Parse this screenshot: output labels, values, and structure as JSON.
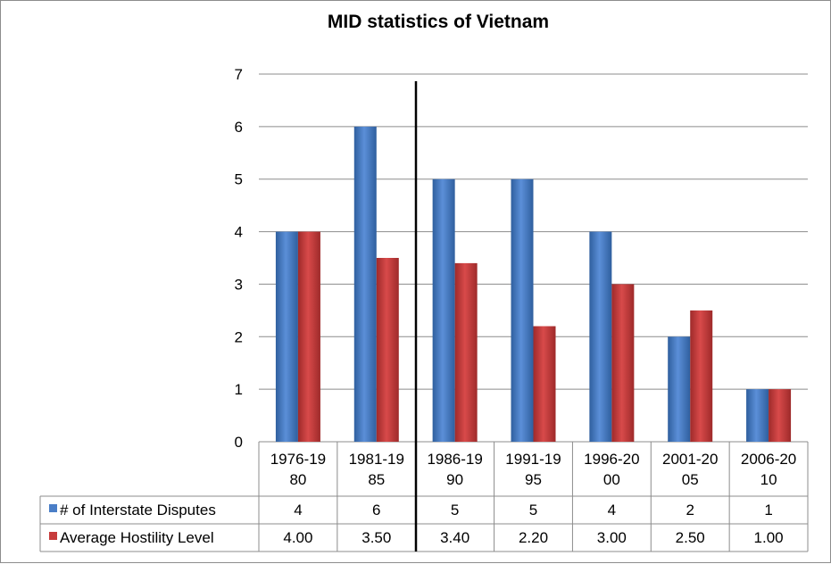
{
  "chart_data": {
    "type": "bar",
    "title": "MID statistics of Vietnam",
    "categories": [
      "1976-1980",
      "1981-1985",
      "1986-1990",
      "1991-1995",
      "1996-2000",
      "2001-2005",
      "2006-2010"
    ],
    "category_lines": [
      [
        "1976-19",
        "80"
      ],
      [
        "1981-19",
        "85"
      ],
      [
        "1986-19",
        "90"
      ],
      [
        "1991-19",
        "95"
      ],
      [
        "1996-20",
        "00"
      ],
      [
        "2001-20",
        "05"
      ],
      [
        "2006-20",
        "10"
      ]
    ],
    "series": [
      {
        "name": "# of Interstate Disputes",
        "color": "#4a7ec7",
        "values": [
          4,
          6,
          5,
          5,
          4,
          2,
          1
        ],
        "labels": [
          "4",
          "6",
          "5",
          "5",
          "4",
          "2",
          "1"
        ]
      },
      {
        "name": "Average Hostility Level",
        "color": "#c73c3c",
        "values": [
          4.0,
          3.5,
          3.4,
          2.2,
          3.0,
          2.5,
          1.0
        ],
        "labels": [
          "4.00",
          "3.50",
          "3.40",
          "2.20",
          "3.00",
          "2.50",
          "1.00"
        ]
      }
    ],
    "ylim": [
      0,
      7
    ],
    "yticks": [
      0,
      1,
      2,
      3,
      4,
      5,
      6,
      7
    ],
    "grid": true,
    "legend": "data-table",
    "xlabel": "",
    "ylabel": ""
  }
}
